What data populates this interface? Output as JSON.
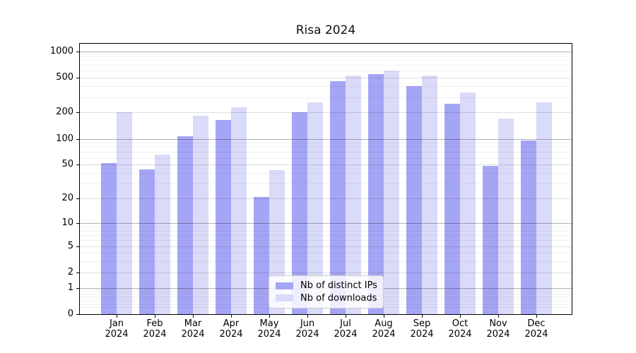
{
  "chart_data": {
    "type": "bar",
    "title": "Risa 2024",
    "x": {
      "months": [
        "Jan",
        "Feb",
        "Mar",
        "Apr",
        "May",
        "Jun",
        "Jul",
        "Aug",
        "Sep",
        "Oct",
        "Nov",
        "Dec"
      ],
      "year": "2024"
    },
    "series": [
      {
        "name": "Nb of distinct IPs",
        "color": "#a5a5f6",
        "values": [
          52,
          44,
          106,
          165,
          21,
          200,
          460,
          550,
          400,
          250,
          48,
          96
        ]
      },
      {
        "name": "Nb of downloads",
        "color": "#dadaf9",
        "values": [
          200,
          66,
          185,
          230,
          43,
          260,
          535,
          610,
          535,
          340,
          170,
          260
        ]
      }
    ],
    "yscale": "log1p",
    "yticks": [
      1000,
      500,
      200,
      100,
      50,
      20,
      10,
      5,
      2,
      1,
      0
    ],
    "ylim": [
      0,
      1230
    ],
    "grid": true,
    "legend_position": "lower center"
  }
}
